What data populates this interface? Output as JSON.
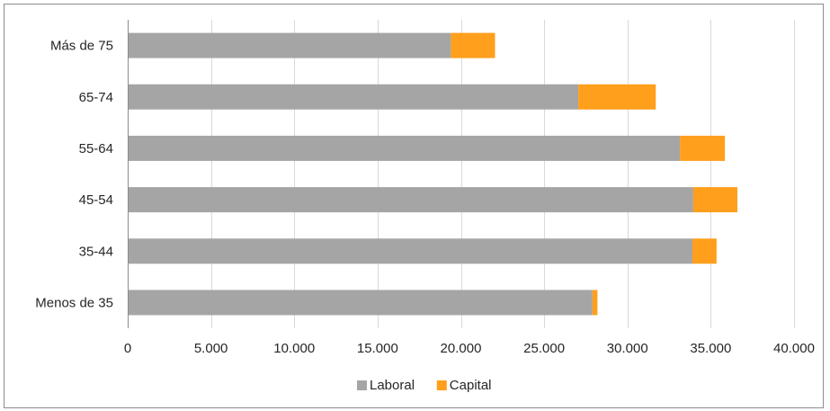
{
  "chart_data": {
    "type": "bar",
    "orientation": "horizontal",
    "stacked": true,
    "categories": [
      "Menos de 35",
      "35-44",
      "45-54",
      "55-64",
      "65-74",
      "Más de 75"
    ],
    "series": [
      {
        "name": "Laboral",
        "color": "#a5a5a5",
        "values": [
          27900,
          33900,
          33950,
          33150,
          27050,
          19400
        ]
      },
      {
        "name": "Capital",
        "color": "#ff9f1c",
        "values": [
          300,
          1450,
          2650,
          2700,
          4650,
          2650
        ]
      }
    ],
    "xlim": [
      0,
      40000
    ],
    "xticks": [
      0,
      5000,
      10000,
      15000,
      20000,
      25000,
      30000,
      35000,
      40000
    ],
    "xtick_labels": [
      "0",
      "5.000",
      "10.000",
      "15.000",
      "20.000",
      "25.000",
      "30.000",
      "35.000",
      "40.000"
    ],
    "gridlines": true,
    "legend_position": "bottom",
    "title": "",
    "xlabel": "",
    "ylabel": ""
  }
}
